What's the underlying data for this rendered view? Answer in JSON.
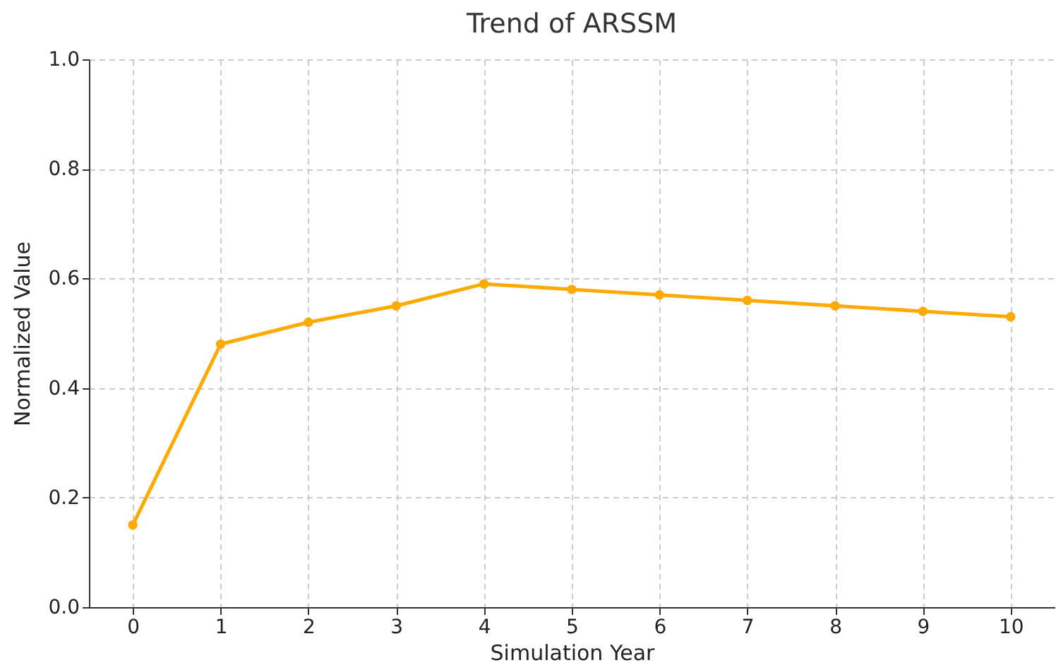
{
  "chart_data": {
    "type": "line",
    "title": "Trend of ARSSM",
    "xlabel": "Simulation Year",
    "ylabel": "Normalized Value",
    "x": [
      0,
      1,
      2,
      3,
      4,
      5,
      6,
      7,
      8,
      9,
      10
    ],
    "values": [
      0.15,
      0.48,
      0.52,
      0.55,
      0.59,
      0.58,
      0.57,
      0.56,
      0.55,
      0.54,
      0.53
    ],
    "color": "#ffaa00",
    "xlim": [
      -0.5,
      10.5
    ],
    "xticks": [
      0,
      1,
      2,
      3,
      4,
      5,
      6,
      7,
      8,
      9,
      10
    ],
    "ylim": [
      0,
      1
    ],
    "yticks": [
      {
        "value": 0,
        "label": "0.0"
      },
      {
        "value": 0.2,
        "label": "0.2"
      },
      {
        "value": 0.4,
        "label": "0.4"
      },
      {
        "value": 0.6,
        "label": "0.6"
      },
      {
        "value": 0.8,
        "label": "0.8"
      },
      {
        "value": 1,
        "label": "1.0"
      }
    ],
    "grid": true,
    "marker": "circle",
    "line_style": "solid"
  }
}
